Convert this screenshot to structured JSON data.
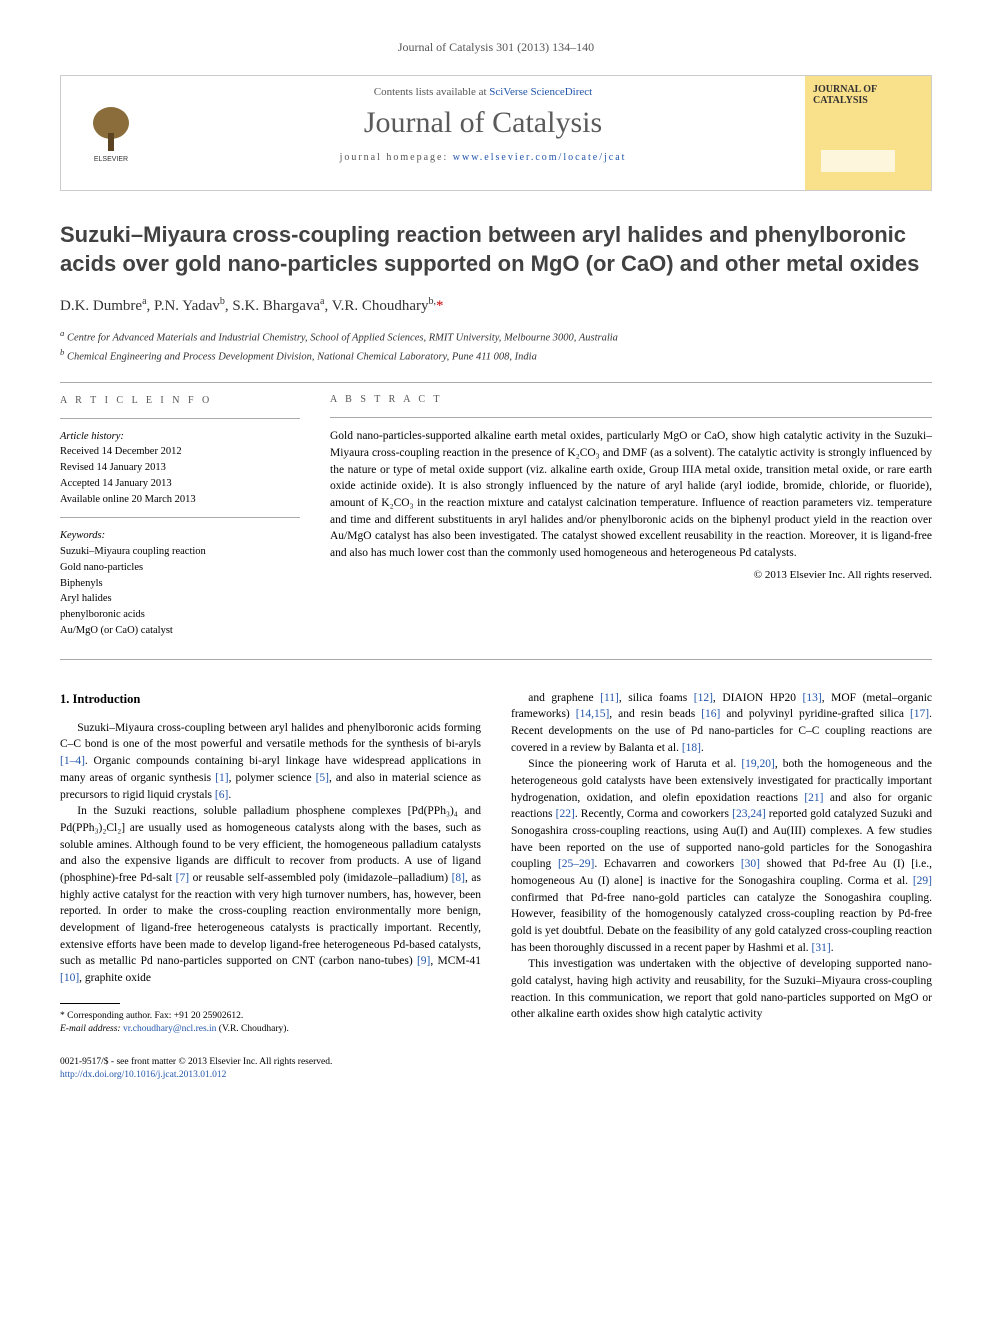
{
  "header": {
    "citation": "Journal of Catalysis 301 (2013) 134–140"
  },
  "banner": {
    "contents_prefix": "Contents lists available at ",
    "contents_link": "SciVerse ScienceDirect",
    "journal_name": "Journal of Catalysis",
    "homepage_prefix": "journal homepage: ",
    "homepage_url": "www.elsevier.com/locate/jcat",
    "publisher": "ELSEVIER",
    "cover_title": "JOURNAL OF CATALYSIS",
    "colors": {
      "cover_bg": "#f9e08a",
      "link": "#2255aa",
      "title_gray": "#5a5a5a"
    }
  },
  "article": {
    "title": "Suzuki–Miyaura cross-coupling reaction between aryl halides and phenylboronic acids over gold nano-particles supported on MgO (or CaO) and other metal oxides",
    "authors_html": "D.K. Dumbre<sup>a</sup>, P.N. Yadav<sup>b</sup>, S.K. Bhargava<sup>a</sup>, V.R. Choudhary<sup>b,</sup>",
    "corresponding_marker": "*",
    "affiliations": {
      "a": "Centre for Advanced Materials and Industrial Chemistry, School of Applied Sciences, RMIT University, Melbourne 3000, Australia",
      "b": "Chemical Engineering and Process Development Division, National Chemical Laboratory, Pune 411 008, India"
    }
  },
  "info": {
    "heading": "A R T I C L E   I N F O",
    "history_label": "Article history:",
    "received": "Received 14 December 2012",
    "revised": "Revised 14 January 2013",
    "accepted": "Accepted 14 January 2013",
    "online": "Available online 20 March 2013",
    "keywords_label": "Keywords:",
    "keywords": [
      "Suzuki–Miyaura coupling reaction",
      "Gold nano-particles",
      "Biphenyls",
      "Aryl halides",
      "phenylboronic acids",
      "Au/MgO (or CaO) catalyst"
    ]
  },
  "abstract": {
    "heading": "A B S T R A C T",
    "text": "Gold nano-particles-supported alkaline earth metal oxides, particularly MgO or CaO, show high catalytic activity in the Suzuki–Miyaura cross-coupling reaction in the presence of K₂CO₃ and DMF (as a solvent). The catalytic activity is strongly influenced by the nature or type of metal oxide support (viz. alkaline earth oxide, Group IIIA metal oxide, transition metal oxide, or rare earth oxide actinide oxide). It is also strongly influenced by the nature of aryl halide (aryl iodide, bromide, chloride, or fluoride), amount of K₂CO₃ in the reaction mixture and catalyst calcination temperature. Influence of reaction parameters viz. temperature and time and different substituents in aryl halides and/or phenylboronic acids on the biphenyl product yield in the reaction over Au/MgO catalyst has also been investigated. The catalyst showed excellent reusability in the reaction. Moreover, it is ligand-free and also has much lower cost than the commonly used homogeneous and heterogeneous Pd catalysts.",
    "copyright": "© 2013 Elsevier Inc. All rights reserved."
  },
  "body": {
    "section_heading": "1. Introduction",
    "left_paragraphs": [
      "Suzuki–Miyaura cross-coupling between aryl halides and phenylboronic acids forming C–C bond is one of the most powerful and versatile methods for the synthesis of bi-aryls [1–4]. Organic compounds containing bi-aryl linkage have widespread applications in many areas of organic synthesis [1], polymer science [5], and also in material science as precursors to rigid liquid crystals [6].",
      "In the Suzuki reactions, soluble palladium phosphene complexes [Pd(PPh₃)₄ and Pd(PPh₃)₂Cl₂] are usually used as homogeneous catalysts along with the bases, such as soluble amines. Although found to be very efficient, the homogeneous palladium catalysts and also the expensive ligands are difficult to recover from products. A use of ligand (phosphine)-free Pd-salt [7] or reusable self-assembled poly (imidazole–palladium) [8], as highly active catalyst for the reaction with very high turnover numbers, has, however, been reported. In order to make the cross-coupling reaction environmentally more benign, development of ligand-free heterogeneous catalysts is practically important. Recently, extensive efforts have been made to develop ligand-free heterogeneous Pd-based catalysts, such as metallic Pd nano-particles supported on CNT (carbon nano-tubes) [9], MCM-41 [10], graphite oxide"
    ],
    "right_paragraphs": [
      "and graphene [11], silica foams [12], DIAION HP20 [13], MOF (metal–organic frameworks) [14,15], and resin beads [16] and polyvinyl pyridine-grafted silica [17]. Recent developments on the use of Pd nano-particles for C–C coupling reactions are covered in a review by Balanta et al. [18].",
      "Since the pioneering work of Haruta et al. [19,20], both the homogeneous and the heterogeneous gold catalysts have been extensively investigated for practically important hydrogenation, oxidation, and olefin epoxidation reactions [21] and also for organic reactions [22]. Recently, Corma and coworkers [23,24] reported gold catalyzed Suzuki and Sonogashira cross-coupling reactions, using Au(I) and Au(III) complexes. A few studies have been reported on the use of supported nano-gold particles for the Sonogashira coupling [25–29]. Echavarren and coworkers [30] showed that Pd-free Au (I) [i.e., homogeneous Au (I) alone] is inactive for the Sonogashira coupling. Corma et al. [29] confirmed that Pd-free nano-gold particles can catalyze the Sonogashira coupling. However, feasibility of the homogenously catalyzed cross-coupling reaction by Pd-free gold is yet doubtful. Debate on the feasibility of any gold catalyzed cross-coupling reaction has been thoroughly discussed in a recent paper by Hashmi et al. [31].",
      "This investigation was undertaken with the objective of developing supported nano-gold catalyst, having high activity and reusability, for the Suzuki–Miyaura cross-coupling reaction. In this communication, we report that gold nano-particles supported on MgO or other alkaline earth oxides show high catalytic activity"
    ]
  },
  "footnote": {
    "corresponding": "* Corresponding author. Fax: +91 20 25902612.",
    "email_label": "E-mail address:",
    "email": "vr.choudhary@ncl.res.in",
    "email_suffix": "(V.R. Choudhary)."
  },
  "footer": {
    "issn": "0021-9517/$ - see front matter © 2013 Elsevier Inc. All rights reserved.",
    "doi": "http://dx.doi.org/10.1016/j.jcat.2013.01.012"
  }
}
